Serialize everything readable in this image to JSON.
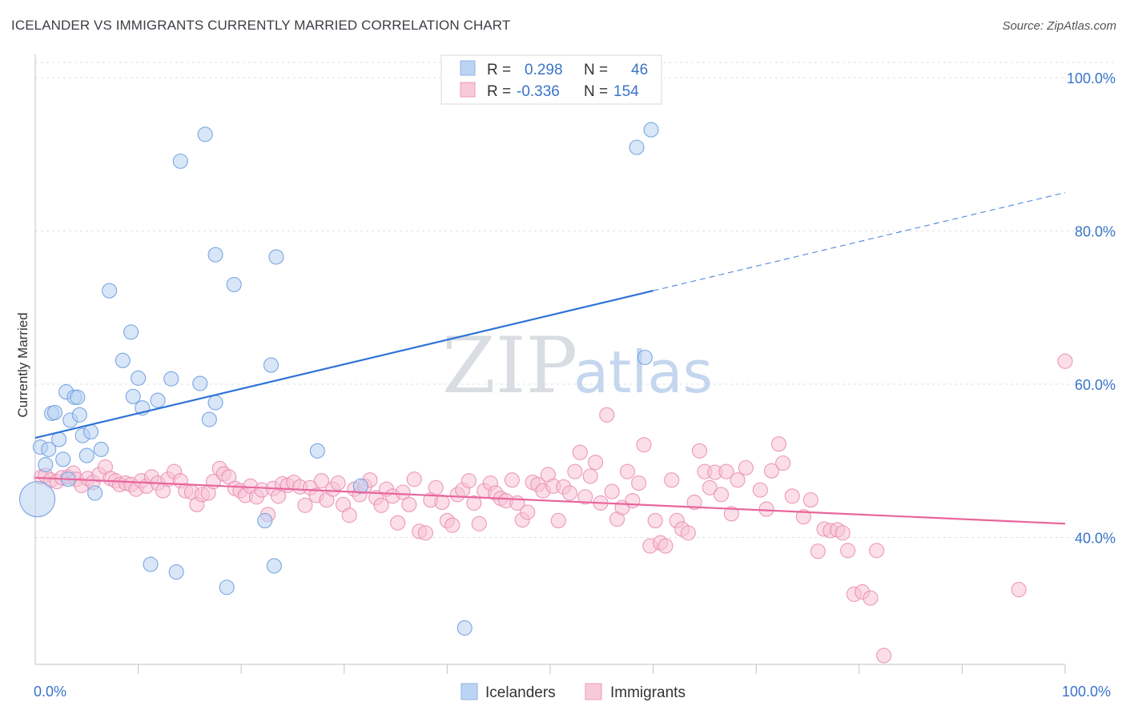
{
  "title": "ICELANDER VS IMMIGRANTS CURRENTLY MARRIED CORRELATION CHART",
  "source": "Source: ZipAtlas.com",
  "watermark": {
    "zip": "ZIP",
    "atlas": "atlas"
  },
  "colors": {
    "blue": "#3d7bd9",
    "blue_fill": "#a9c8f0",
    "pink": "#e8669a",
    "pink_fill": "#f5b9cf",
    "tick_text": "#3a74c9",
    "grid": "#dcdfe4"
  },
  "legend": {
    "rows": [
      {
        "r_label": "R =",
        "r_value": "0.298",
        "n_label": "N =",
        "n_value": "46"
      },
      {
        "r_label": "R =",
        "r_value": "-0.336",
        "n_label": "N =",
        "n_value": "154"
      }
    ]
  },
  "chart_data": {
    "type": "scatter",
    "title": "ICELANDER VS IMMIGRANTS CURRENTLY MARRIED CORRELATION CHART",
    "xlabel": "",
    "ylabel": "Currently Married",
    "xlim": [
      0,
      100
    ],
    "ylim": [
      20,
      102
    ],
    "x_tick_labels": [
      "0.0%",
      "100.0%"
    ],
    "y_ticks": [
      {
        "value": 100,
        "label": "100.0%"
      },
      {
        "value": 80,
        "label": "80.0%"
      },
      {
        "value": 60,
        "label": "60.0%"
      },
      {
        "value": 40,
        "label": "40.0%"
      }
    ],
    "grid": true,
    "legend_placement": "bottom-center",
    "series": [
      {
        "name": "Icelanders",
        "color": "#3d7bd9",
        "trend": {
          "x": [
            0,
            60
          ],
          "y": [
            53,
            72.2
          ],
          "dashed_to": [
            100,
            85
          ]
        },
        "points": [
          [
            0.2,
            45.0,
            2
          ],
          [
            0.5,
            51.8,
            1
          ],
          [
            1.0,
            49.5,
            1
          ],
          [
            1.3,
            51.5,
            1
          ],
          [
            1.6,
            56.2,
            1
          ],
          [
            1.9,
            56.3,
            1
          ],
          [
            2.3,
            52.8,
            1
          ],
          [
            2.7,
            50.2,
            1
          ],
          [
            3.0,
            59.0,
            1
          ],
          [
            3.2,
            47.6,
            1
          ],
          [
            3.4,
            55.3,
            1
          ],
          [
            3.8,
            58.3,
            1
          ],
          [
            4.1,
            58.3,
            1
          ],
          [
            4.3,
            56.0,
            1
          ],
          [
            4.6,
            53.3,
            1
          ],
          [
            5.0,
            50.7,
            1
          ],
          [
            5.4,
            53.8,
            1
          ],
          [
            5.8,
            45.8,
            1
          ],
          [
            6.4,
            51.5,
            1
          ],
          [
            7.2,
            72.2,
            1
          ],
          [
            8.5,
            63.1,
            1
          ],
          [
            9.3,
            66.8,
            1
          ],
          [
            9.5,
            58.4,
            1
          ],
          [
            10.0,
            60.8,
            1
          ],
          [
            10.4,
            56.9,
            1
          ],
          [
            11.2,
            36.5,
            1
          ],
          [
            11.9,
            57.9,
            1
          ],
          [
            13.2,
            60.7,
            1
          ],
          [
            13.7,
            35.5,
            1
          ],
          [
            16.0,
            60.1,
            1
          ],
          [
            16.9,
            55.4,
            1
          ],
          [
            17.5,
            57.6,
            1
          ],
          [
            18.6,
            33.5,
            1
          ],
          [
            19.3,
            73.0,
            1
          ],
          [
            14.1,
            89.1,
            1
          ],
          [
            16.5,
            92.6,
            1
          ],
          [
            17.5,
            76.9,
            1
          ],
          [
            22.3,
            42.2,
            1
          ],
          [
            22.9,
            62.5,
            1
          ],
          [
            23.2,
            36.3,
            1
          ],
          [
            23.4,
            76.6,
            1
          ],
          [
            27.4,
            51.3,
            1
          ],
          [
            31.6,
            46.7,
            1
          ],
          [
            41.7,
            28.2,
            1
          ],
          [
            59.2,
            63.5,
            1
          ],
          [
            58.4,
            90.9,
            1
          ],
          [
            59.8,
            93.2,
            1
          ]
        ]
      },
      {
        "name": "Immigrants",
        "color": "#e8669a",
        "trend": {
          "x": [
            0,
            100
          ],
          "y": [
            47.8,
            41.8
          ]
        },
        "points": [
          [
            0.6,
            47.9,
            1
          ],
          [
            1.0,
            48.1,
            1
          ],
          [
            1.5,
            47.5,
            1
          ],
          [
            2.1,
            47.3,
            1
          ],
          [
            2.6,
            47.8,
            1
          ],
          [
            3.2,
            47.9,
            1
          ],
          [
            3.7,
            48.4,
            1
          ],
          [
            4.0,
            47.6,
            1
          ],
          [
            4.5,
            46.8,
            1
          ],
          [
            5.1,
            47.7,
            1
          ],
          [
            5.6,
            47.2,
            1
          ],
          [
            6.2,
            48.2,
            1
          ],
          [
            6.8,
            49.2,
            1
          ],
          [
            7.3,
            47.7,
            1
          ],
          [
            7.8,
            47.4,
            1
          ],
          [
            8.2,
            46.9,
            1
          ],
          [
            8.8,
            47.1,
            1
          ],
          [
            9.3,
            46.9,
            1
          ],
          [
            9.8,
            46.3,
            1
          ],
          [
            10.3,
            47.4,
            1
          ],
          [
            10.8,
            46.7,
            1
          ],
          [
            11.3,
            47.9,
            1
          ],
          [
            11.9,
            47.1,
            1
          ],
          [
            12.4,
            46.1,
            1
          ],
          [
            12.9,
            47.6,
            1
          ],
          [
            13.5,
            48.6,
            1
          ],
          [
            14.1,
            47.4,
            1
          ],
          [
            14.6,
            46.1,
            1
          ],
          [
            15.2,
            45.9,
            1
          ],
          [
            15.7,
            44.3,
            1
          ],
          [
            16.2,
            45.6,
            1
          ],
          [
            16.8,
            45.8,
            1
          ],
          [
            17.3,
            47.3,
            1
          ],
          [
            17.9,
            49.0,
            1
          ],
          [
            18.3,
            48.3,
            1
          ],
          [
            18.8,
            47.9,
            1
          ],
          [
            19.4,
            46.4,
            1
          ],
          [
            19.9,
            46.1,
            1
          ],
          [
            20.4,
            45.5,
            1
          ],
          [
            20.9,
            46.7,
            1
          ],
          [
            21.5,
            45.3,
            1
          ],
          [
            22.0,
            46.2,
            1
          ],
          [
            22.6,
            43.0,
            1
          ],
          [
            23.1,
            46.4,
            1
          ],
          [
            23.6,
            45.4,
            1
          ],
          [
            24.0,
            47.0,
            1
          ],
          [
            24.5,
            46.8,
            1
          ],
          [
            25.1,
            47.2,
            1
          ],
          [
            25.7,
            46.6,
            1
          ],
          [
            26.2,
            44.2,
            1
          ],
          [
            26.7,
            46.5,
            1
          ],
          [
            27.3,
            45.5,
            1
          ],
          [
            27.8,
            47.4,
            1
          ],
          [
            28.3,
            44.9,
            1
          ],
          [
            28.9,
            46.3,
            1
          ],
          [
            29.4,
            47.1,
            1
          ],
          [
            29.9,
            44.3,
            1
          ],
          [
            30.5,
            42.9,
            1
          ],
          [
            31.0,
            46.3,
            1
          ],
          [
            31.5,
            45.6,
            1
          ],
          [
            32.0,
            46.7,
            1
          ],
          [
            32.5,
            47.5,
            1
          ],
          [
            33.1,
            45.2,
            1
          ],
          [
            33.6,
            44.2,
            1
          ],
          [
            34.1,
            46.3,
            1
          ],
          [
            34.7,
            45.4,
            1
          ],
          [
            35.2,
            41.9,
            1
          ],
          [
            35.7,
            45.9,
            1
          ],
          [
            36.3,
            44.3,
            1
          ],
          [
            36.8,
            47.6,
            1
          ],
          [
            37.3,
            40.8,
            1
          ],
          [
            37.9,
            40.6,
            1
          ],
          [
            38.4,
            44.9,
            1
          ],
          [
            38.9,
            46.5,
            1
          ],
          [
            39.5,
            44.6,
            1
          ],
          [
            40.0,
            42.2,
            1
          ],
          [
            40.5,
            41.6,
            1
          ],
          [
            41.0,
            45.6,
            1
          ],
          [
            41.5,
            46.2,
            1
          ],
          [
            42.1,
            47.4,
            1
          ],
          [
            42.6,
            44.5,
            1
          ],
          [
            43.1,
            41.8,
            1
          ],
          [
            43.6,
            46.1,
            1
          ],
          [
            44.2,
            47.1,
            1
          ],
          [
            44.7,
            45.8,
            1
          ],
          [
            45.2,
            45.1,
            1
          ],
          [
            45.7,
            44.8,
            1
          ],
          [
            46.3,
            47.5,
            1
          ],
          [
            46.8,
            44.5,
            1
          ],
          [
            47.3,
            42.3,
            1
          ],
          [
            47.8,
            43.3,
            1
          ],
          [
            48.3,
            47.2,
            1
          ],
          [
            48.8,
            46.9,
            1
          ],
          [
            49.3,
            46.1,
            1
          ],
          [
            49.8,
            48.2,
            1
          ],
          [
            50.3,
            46.7,
            1
          ],
          [
            50.8,
            42.2,
            1
          ],
          [
            51.3,
            46.6,
            1
          ],
          [
            51.9,
            45.8,
            1
          ],
          [
            52.4,
            48.6,
            1
          ],
          [
            52.9,
            51.1,
            1
          ],
          [
            53.4,
            45.3,
            1
          ],
          [
            53.9,
            48.0,
            1
          ],
          [
            54.4,
            49.8,
            1
          ],
          [
            54.9,
            44.5,
            1
          ],
          [
            55.5,
            56.0,
            1
          ],
          [
            56.0,
            46.0,
            1
          ],
          [
            56.5,
            42.4,
            1
          ],
          [
            57.0,
            43.9,
            1
          ],
          [
            57.5,
            48.6,
            1
          ],
          [
            58.0,
            44.8,
            1
          ],
          [
            58.6,
            47.1,
            1
          ],
          [
            59.1,
            52.1,
            1
          ],
          [
            59.7,
            38.9,
            1
          ],
          [
            60.2,
            42.2,
            1
          ],
          [
            60.7,
            39.3,
            1
          ],
          [
            61.2,
            38.9,
            1
          ],
          [
            61.8,
            47.5,
            1
          ],
          [
            62.3,
            42.2,
            1
          ],
          [
            62.8,
            41.1,
            1
          ],
          [
            63.4,
            40.6,
            1
          ],
          [
            64.0,
            44.6,
            1
          ],
          [
            64.5,
            51.3,
            1
          ],
          [
            65.0,
            48.6,
            1
          ],
          [
            65.5,
            46.5,
            1
          ],
          [
            66.0,
            48.5,
            1
          ],
          [
            66.6,
            45.6,
            1
          ],
          [
            67.1,
            48.6,
            1
          ],
          [
            67.6,
            43.1,
            1
          ],
          [
            68.2,
            47.5,
            1
          ],
          [
            69.0,
            49.1,
            1
          ],
          [
            70.4,
            46.2,
            1
          ],
          [
            71.0,
            43.7,
            1
          ],
          [
            71.5,
            48.7,
            1
          ],
          [
            72.2,
            52.2,
            1
          ],
          [
            72.6,
            49.7,
            1
          ],
          [
            73.5,
            45.4,
            1
          ],
          [
            74.6,
            42.7,
            1
          ],
          [
            75.3,
            44.9,
            1
          ],
          [
            76.0,
            38.2,
            1
          ],
          [
            76.6,
            41.1,
            1
          ],
          [
            77.2,
            40.9,
            1
          ],
          [
            77.9,
            41.0,
            1
          ],
          [
            78.4,
            40.6,
            1
          ],
          [
            78.9,
            38.3,
            1
          ],
          [
            79.5,
            32.6,
            1
          ],
          [
            80.3,
            32.9,
            1
          ],
          [
            81.1,
            32.1,
            1
          ],
          [
            81.7,
            38.3,
            1
          ],
          [
            82.4,
            24.6,
            1
          ],
          [
            95.5,
            33.2,
            1
          ],
          [
            100.0,
            63.0,
            1
          ]
        ]
      }
    ]
  }
}
